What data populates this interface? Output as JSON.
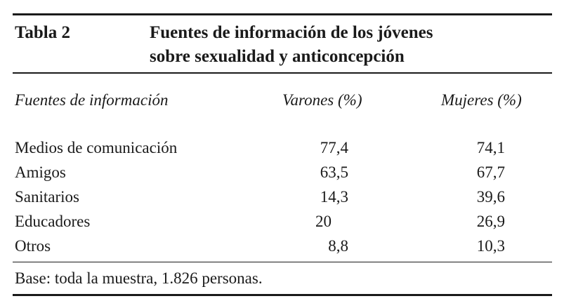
{
  "table": {
    "label": "Tabla 2",
    "title_line1": "Fuentes de información de los jóvenes",
    "title_line2": "sobre sexualidad y anticoncepción",
    "headers": {
      "source": "Fuentes de información",
      "men": "Varones (%)",
      "women": "Mujeres (%)"
    },
    "rows": [
      {
        "source": "Medios de comunicación",
        "men": "77,4",
        "women": "74,1"
      },
      {
        "source": "Amigos",
        "men": "63,5",
        "women": "67,7"
      },
      {
        "source": "Sanitarios",
        "men": "14,3",
        "women": "39,6"
      },
      {
        "source": "Educadores",
        "men": "20",
        "women": "26,9"
      },
      {
        "source": "Otros",
        "men": "8,8",
        "women": "10,3"
      }
    ],
    "footnote": "Base: toda la muestra, 1.826 personas."
  }
}
